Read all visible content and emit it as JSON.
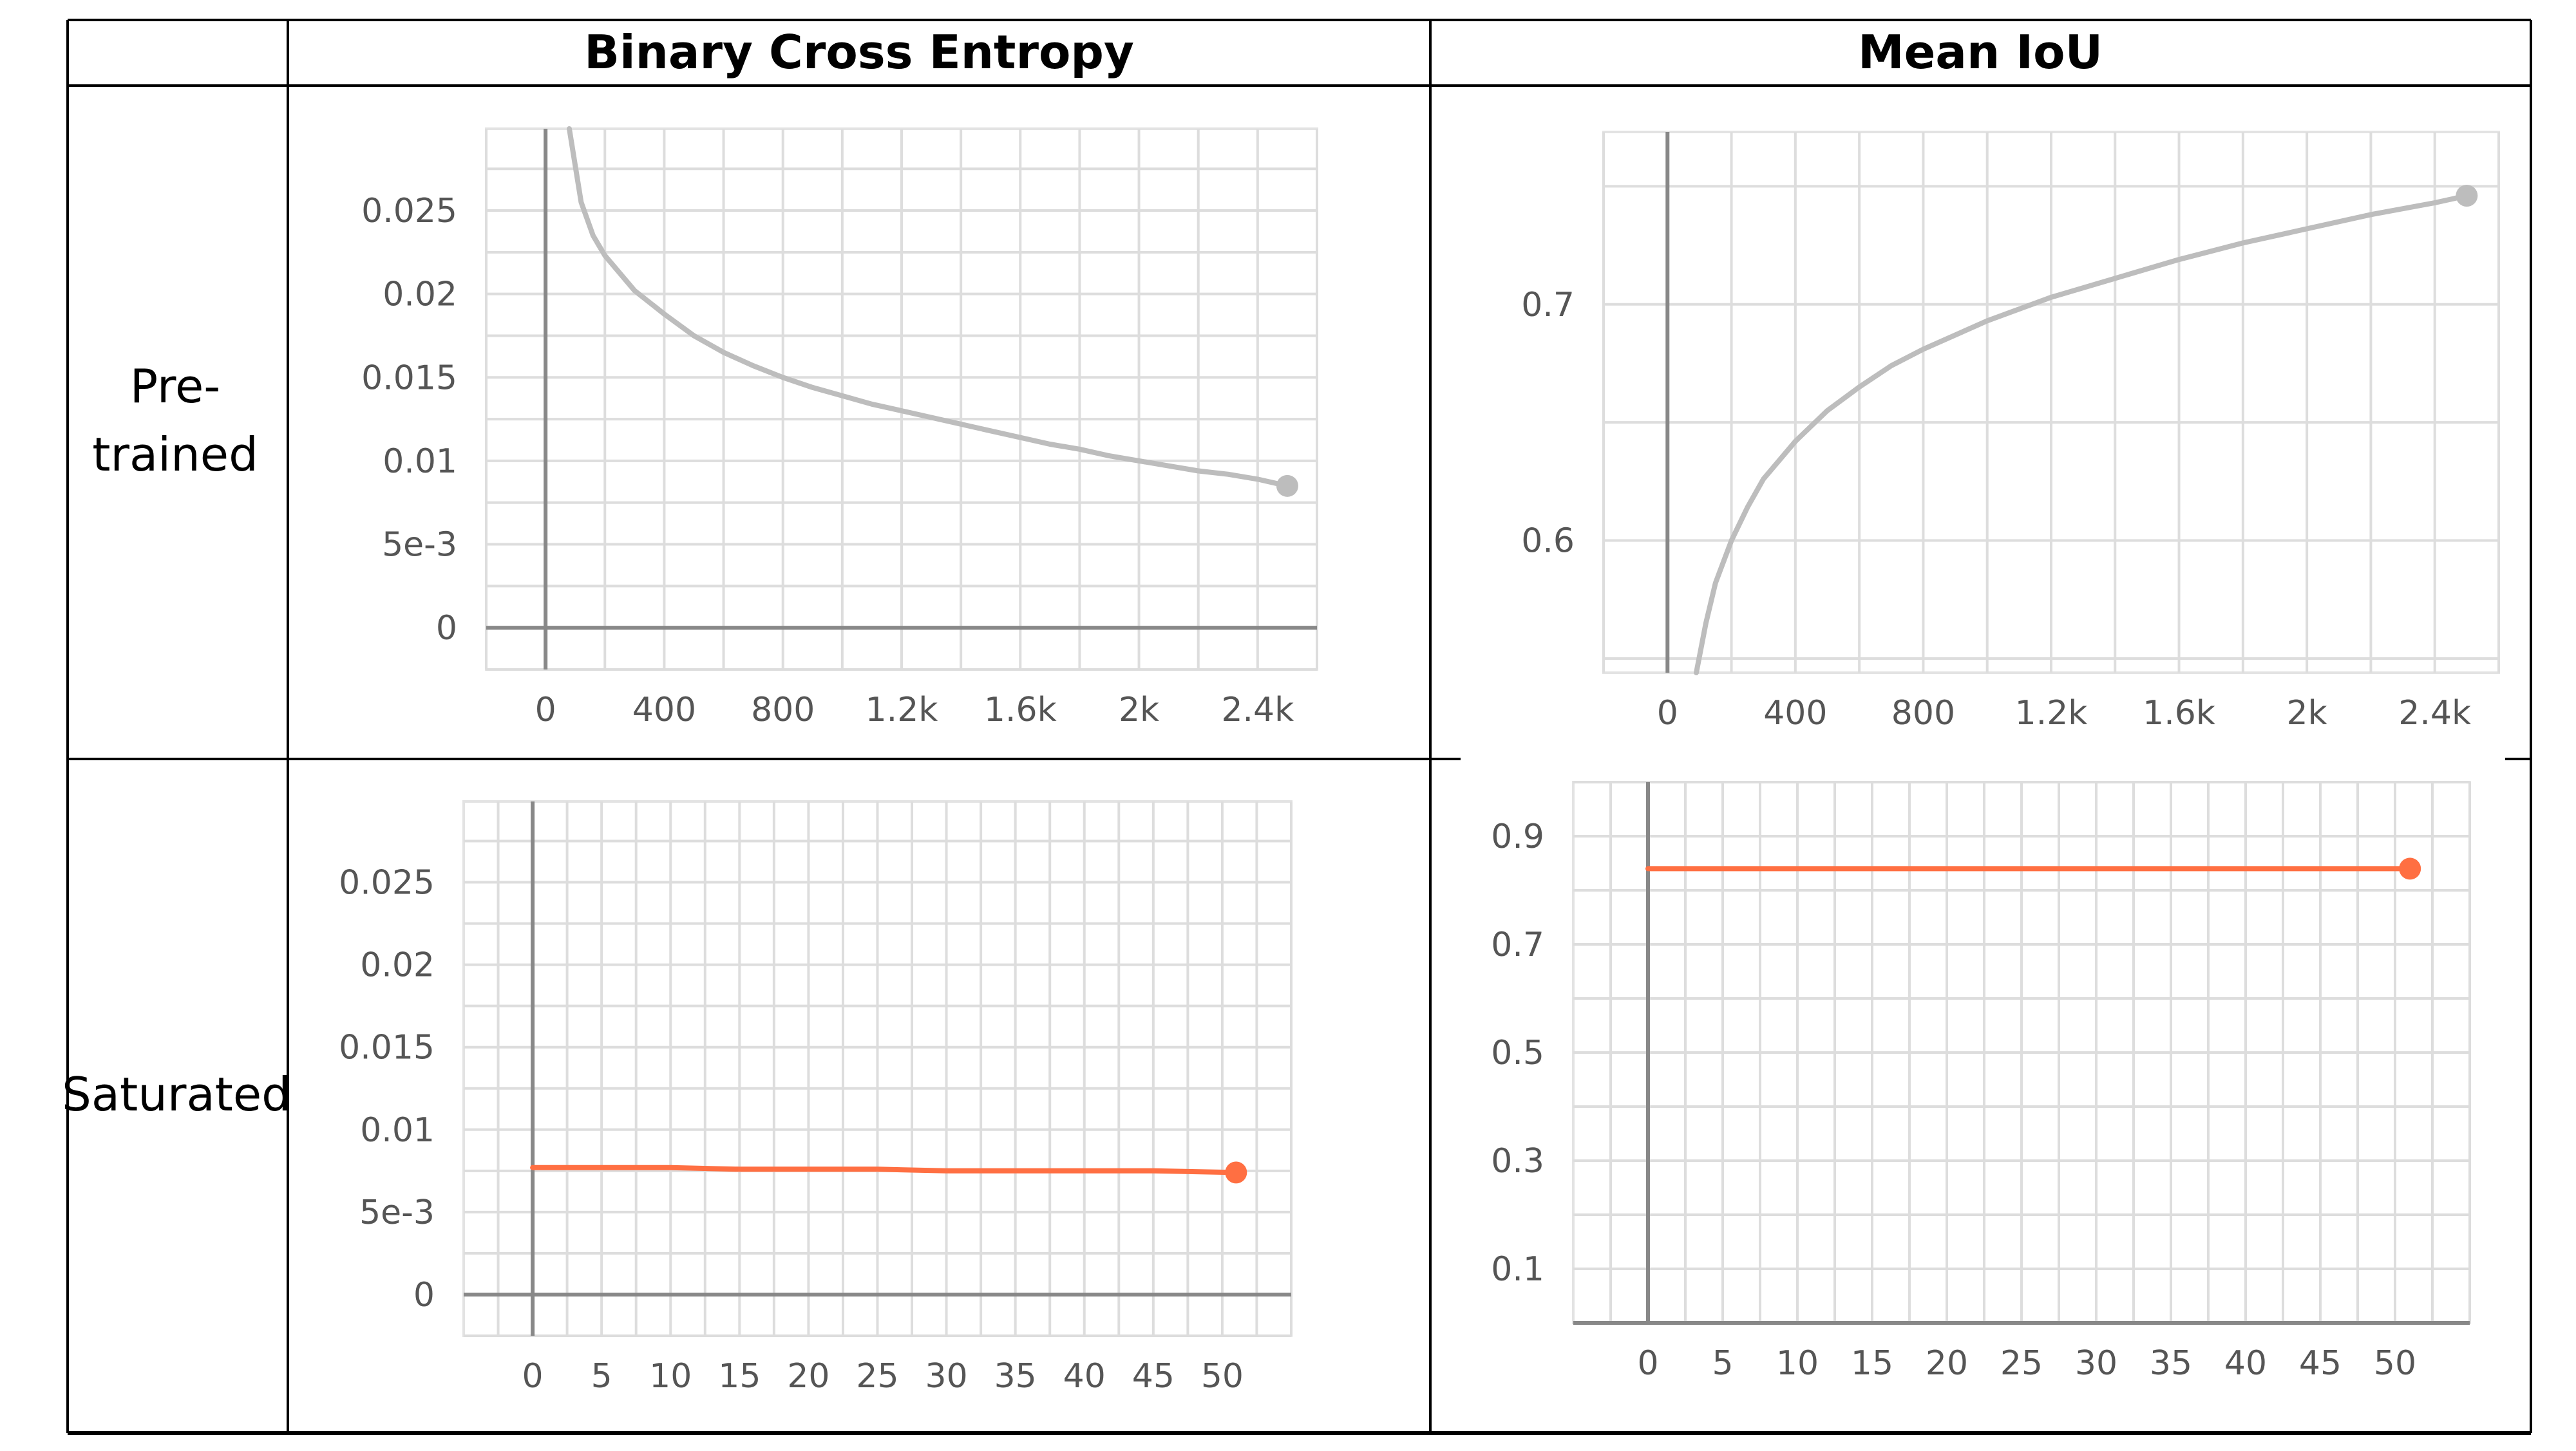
{
  "table": {
    "corner": "",
    "col_headers": [
      "Binary Cross Entropy",
      "Mean IoU"
    ],
    "row_labels": [
      {
        "lines": [
          "Pre-",
          "trained"
        ]
      },
      {
        "lines": [
          "Saturated"
        ]
      }
    ]
  },
  "chart_data": [
    {
      "id": "bce-pretrained",
      "type": "line",
      "title": "",
      "xlabel": "",
      "ylabel": "",
      "color": "#bdbdbd",
      "xlim": [
        -200,
        2600
      ],
      "ylim": [
        -0.0025,
        0.0299
      ],
      "x_ticks": [
        0,
        400,
        800,
        1200,
        1600,
        2000,
        2400
      ],
      "x_tick_labels": [
        "0",
        "400",
        "800",
        "1.2k",
        "1.6k",
        "2k",
        "2.4k"
      ],
      "y_ticks": [
        0,
        0.005,
        0.01,
        0.015,
        0.02,
        0.025
      ],
      "y_tick_labels": [
        "0",
        "5e-3",
        "0.01",
        "0.015",
        "0.02",
        "0.025"
      ],
      "grid": true,
      "series": [
        {
          "x": [
            80,
            120,
            160,
            200,
            300,
            400,
            500,
            600,
            700,
            800,
            900,
            1000,
            1100,
            1200,
            1300,
            1400,
            1500,
            1600,
            1700,
            1800,
            1900,
            2000,
            2100,
            2200,
            2300,
            2400,
            2500
          ],
          "y": [
            0.0299,
            0.0255,
            0.0235,
            0.0223,
            0.0202,
            0.0188,
            0.0175,
            0.0165,
            0.0157,
            0.015,
            0.0144,
            0.0139,
            0.0134,
            0.013,
            0.0126,
            0.0122,
            0.0118,
            0.0114,
            0.011,
            0.0107,
            0.0103,
            0.01,
            0.0097,
            0.0094,
            0.0092,
            0.0089,
            0.0085
          ],
          "end_marker": true
        }
      ]
    },
    {
      "id": "miou-pretrained",
      "type": "line",
      "title": "",
      "xlabel": "",
      "ylabel": "",
      "color": "#bdbdbd",
      "xlim": [
        -200,
        2600
      ],
      "ylim": [
        0.544,
        0.773
      ],
      "x_ticks": [
        0,
        400,
        800,
        1200,
        1600,
        2000,
        2400
      ],
      "x_tick_labels": [
        "0",
        "400",
        "800",
        "1.2k",
        "1.6k",
        "2k",
        "2.4k"
      ],
      "y_ticks": [
        0.6,
        0.7
      ],
      "y_tick_labels": [
        "0.6",
        "0.7"
      ],
      "grid": true,
      "series": [
        {
          "x": [
            90,
            120,
            150,
            200,
            250,
            300,
            400,
            500,
            600,
            700,
            800,
            1000,
            1200,
            1400,
            1600,
            1800,
            2000,
            2200,
            2400,
            2500
          ],
          "y": [
            0.544,
            0.565,
            0.582,
            0.6,
            0.614,
            0.626,
            0.642,
            0.655,
            0.665,
            0.674,
            0.681,
            0.693,
            0.703,
            0.711,
            0.719,
            0.726,
            0.732,
            0.738,
            0.743,
            0.746
          ],
          "end_marker": true
        }
      ]
    },
    {
      "id": "bce-saturated",
      "type": "line",
      "title": "",
      "xlabel": "",
      "ylabel": "",
      "color": "#ff6f42",
      "xlim": [
        -5,
        55
      ],
      "ylim": [
        -0.0025,
        0.0299
      ],
      "x_ticks": [
        0,
        5,
        10,
        15,
        20,
        25,
        30,
        35,
        40,
        45,
        50
      ],
      "x_tick_labels": [
        "0",
        "5",
        "10",
        "15",
        "20",
        "25",
        "30",
        "35",
        "40",
        "45",
        "50"
      ],
      "y_ticks": [
        0,
        0.005,
        0.01,
        0.015,
        0.02,
        0.025
      ],
      "y_tick_labels": [
        "0",
        "5e-3",
        "0.01",
        "0.015",
        "0.02",
        "0.025"
      ],
      "grid": true,
      "series": [
        {
          "x": [
            0,
            5,
            10,
            15,
            20,
            25,
            30,
            35,
            40,
            45,
            51
          ],
          "y": [
            0.0077,
            0.0077,
            0.0077,
            0.0076,
            0.0076,
            0.0076,
            0.0075,
            0.0075,
            0.0075,
            0.0075,
            0.0074
          ],
          "end_marker": true
        }
      ]
    },
    {
      "id": "miou-saturated",
      "type": "line",
      "title": "",
      "xlabel": "",
      "ylabel": "",
      "color": "#ff6f42",
      "xlim": [
        -5,
        55
      ],
      "ylim": [
        0.0,
        1.0
      ],
      "x_ticks": [
        0,
        5,
        10,
        15,
        20,
        25,
        30,
        35,
        40,
        45,
        50
      ],
      "x_tick_labels": [
        "0",
        "5",
        "10",
        "15",
        "20",
        "25",
        "30",
        "35",
        "40",
        "45",
        "50"
      ],
      "y_ticks": [
        0.1,
        0.3,
        0.5,
        0.7,
        0.9
      ],
      "y_tick_labels": [
        "0.1",
        "0.3",
        "0.5",
        "0.7",
        "0.9"
      ],
      "grid": true,
      "series": [
        {
          "x": [
            0,
            10,
            20,
            30,
            40,
            51
          ],
          "y": [
            0.84,
            0.84,
            0.84,
            0.84,
            0.84,
            0.84
          ],
          "end_marker": true
        }
      ]
    }
  ]
}
